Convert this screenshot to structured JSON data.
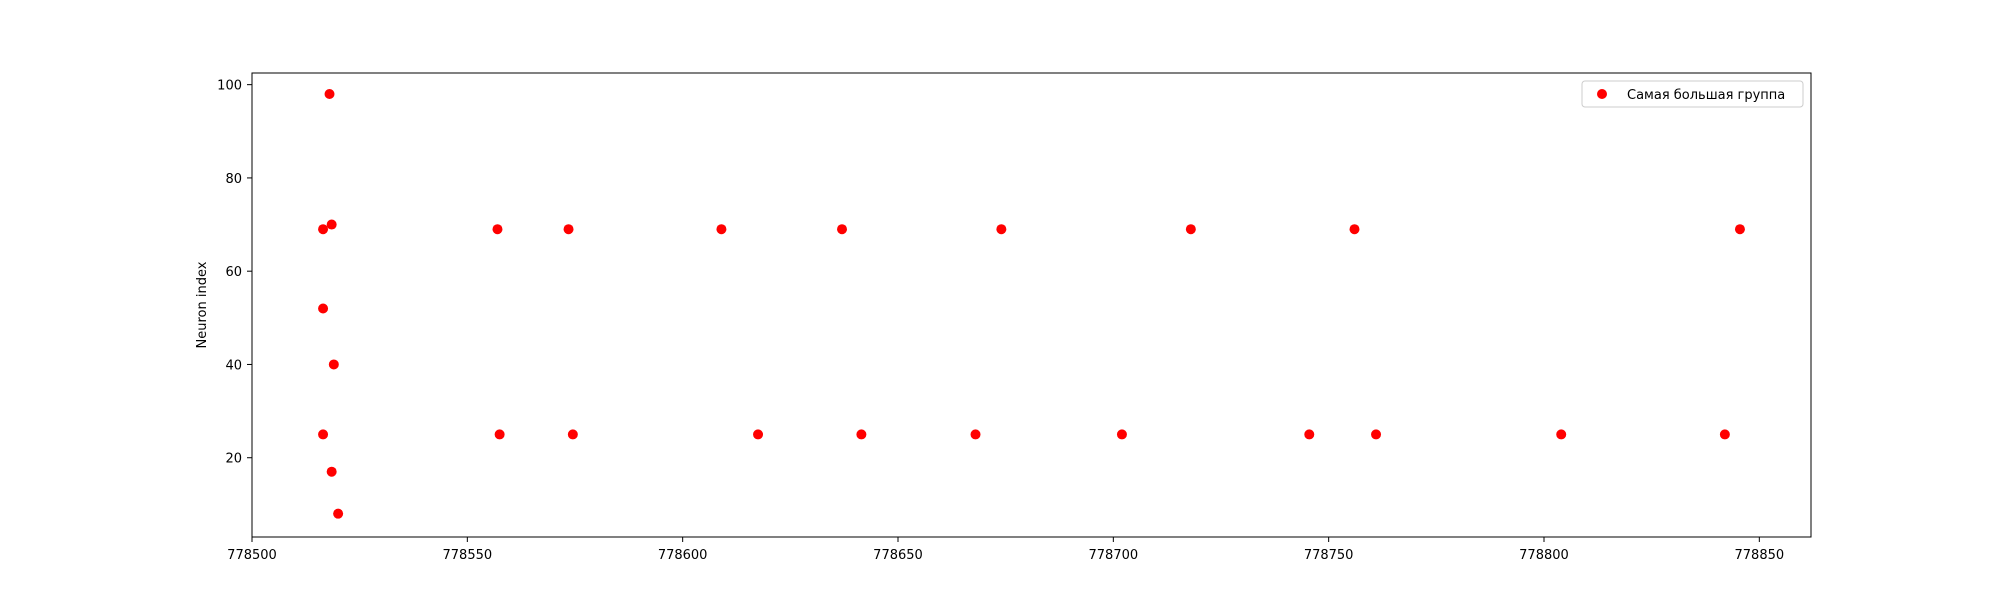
{
  "chart_data": {
    "type": "scatter",
    "title": "",
    "xlabel": "",
    "ylabel": "Neuron index",
    "xlim": [
      778500,
      778862
    ],
    "ylim": [
      3,
      102.5
    ],
    "x_ticks": [
      778500,
      778550,
      778600,
      778650,
      778700,
      778750,
      778800,
      778850
    ],
    "y_ticks": [
      20,
      40,
      60,
      80,
      100
    ],
    "grid": false,
    "legend_position": "top-right",
    "series": [
      {
        "name": "Самая большая группа",
        "color": "#ff0000",
        "marker": "circle",
        "points": [
          {
            "x": 778518,
            "y": 98
          },
          {
            "x": 778518.5,
            "y": 70
          },
          {
            "x": 778516.5,
            "y": 69
          },
          {
            "x": 778516.5,
            "y": 52
          },
          {
            "x": 778519,
            "y": 40
          },
          {
            "x": 778516.5,
            "y": 25
          },
          {
            "x": 778518.5,
            "y": 17
          },
          {
            "x": 778520,
            "y": 8
          },
          {
            "x": 778557,
            "y": 69
          },
          {
            "x": 778557.5,
            "y": 25
          },
          {
            "x": 778573.5,
            "y": 69
          },
          {
            "x": 778574.5,
            "y": 25
          },
          {
            "x": 778609,
            "y": 69
          },
          {
            "x": 778617.5,
            "y": 25
          },
          {
            "x": 778637,
            "y": 69
          },
          {
            "x": 778641.5,
            "y": 25
          },
          {
            "x": 778668,
            "y": 25
          },
          {
            "x": 778674,
            "y": 69
          },
          {
            "x": 778702,
            "y": 25
          },
          {
            "x": 778718,
            "y": 69
          },
          {
            "x": 778745.5,
            "y": 25
          },
          {
            "x": 778756,
            "y": 69
          },
          {
            "x": 778761,
            "y": 25
          },
          {
            "x": 778804,
            "y": 25
          },
          {
            "x": 778842,
            "y": 25
          },
          {
            "x": 778845.5,
            "y": 69
          }
        ]
      }
    ]
  }
}
